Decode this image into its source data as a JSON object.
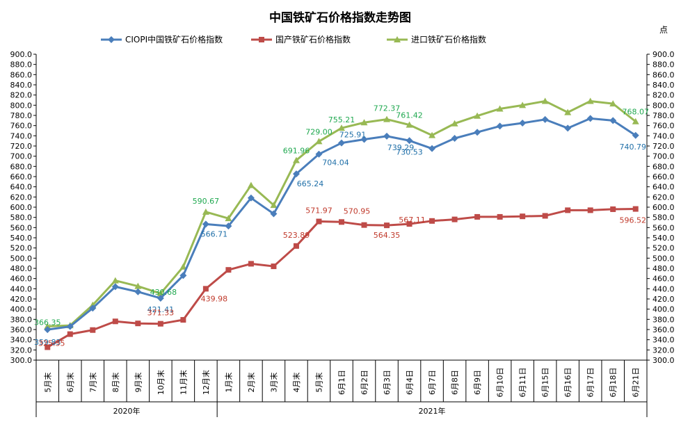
{
  "chart_data": {
    "type": "line",
    "title": "中国铁矿石价格指数走势图",
    "unit_label": "点",
    "ylim": [
      300,
      900
    ],
    "y_ticks": [
      "300.0",
      "320.0",
      "340.0",
      "360.0",
      "380.0",
      "400.0",
      "420.0",
      "440.0",
      "460.0",
      "480.0",
      "500.0",
      "520.0",
      "540.0",
      "560.0",
      "580.0",
      "600.0",
      "620.0",
      "640.0",
      "660.0",
      "680.0",
      "700.0",
      "720.0",
      "740.0",
      "760.0",
      "780.0",
      "800.0",
      "820.0",
      "840.0",
      "860.0",
      "880.0",
      "900.0"
    ],
    "categories": [
      "5月末",
      "6月末",
      "7月末",
      "8月末",
      "9月末",
      "10月末",
      "11月末",
      "12月末",
      "1月末",
      "2月末",
      "3月末",
      "4月末",
      "5月末",
      "6月1日",
      "6月2日",
      "6月3日",
      "6月4日",
      "6月7日",
      "6月8日",
      "6月9日",
      "6月10日",
      "6月11日",
      "6月15日",
      "6月16日",
      "6月17日",
      "6月18日",
      "6月21日"
    ],
    "year_groups": [
      {
        "label": "2020年",
        "count": 8
      },
      {
        "label": "2021年",
        "count": 19
      }
    ],
    "legend_position": "top",
    "series": [
      {
        "name": "CIOPI中国铁矿石价格指数",
        "color": "#4A7EBB",
        "marker": "diamond",
        "label_color": "#1F6FA8",
        "values": [
          359.83,
          366,
          402,
          444,
          434,
          421.41,
          466,
          566.71,
          563,
          618,
          587,
          665.24,
          704.04,
          725.91,
          733,
          739.29,
          730.53,
          715,
          735,
          747,
          759,
          765,
          772,
          755,
          774,
          770,
          740.79
        ],
        "data_labels": [
          {
            "index": 0,
            "text": "359.83"
          },
          {
            "index": 5,
            "text": "421.41"
          },
          {
            "index": 7,
            "text": "566.71"
          },
          {
            "index": 11,
            "text": "665.24"
          },
          {
            "index": 12,
            "text": "704.04"
          },
          {
            "index": 13,
            "text": "725.91"
          },
          {
            "index": 15,
            "text": "739.29"
          },
          {
            "index": 16,
            "text": "730.53"
          },
          {
            "index": 26,
            "text": "740.79"
          }
        ]
      },
      {
        "name": "国产铁矿石价格指数",
        "color": "#BE4B48",
        "marker": "square",
        "label_color": "#C0392B",
        "values": [
          325.35,
          351,
          359,
          376,
          372,
          371.33,
          379,
          439.98,
          477,
          489,
          484,
          523.89,
          571.97,
          570.95,
          565,
          564.35,
          567.11,
          573,
          576,
          581,
          581,
          582,
          583,
          594,
          594,
          596,
          596.52
        ],
        "data_labels": [
          {
            "index": 0,
            "text": "325.35"
          },
          {
            "index": 5,
            "text": "371.33"
          },
          {
            "index": 7,
            "text": "439.98"
          },
          {
            "index": 11,
            "text": "523.89"
          },
          {
            "index": 12,
            "text": "571.97"
          },
          {
            "index": 13,
            "text": "570.95"
          },
          {
            "index": 15,
            "text": "564.35"
          },
          {
            "index": 16,
            "text": "567.11"
          },
          {
            "index": 26,
            "text": "596.52"
          }
        ]
      },
      {
        "name": "进口铁矿石价格指数",
        "color": "#98B954",
        "marker": "triangle",
        "label_color": "#1FA84F",
        "values": [
          366.35,
          368,
          408,
          456,
          445,
          430.68,
          483,
          590.67,
          578,
          643,
          604,
          691.96,
          729,
          755.21,
          766,
          772.37,
          761.42,
          741,
          764,
          779,
          793,
          800,
          808,
          786,
          808,
          803,
          768.07
        ],
        "data_labels": [
          {
            "index": 0,
            "text": "366.35"
          },
          {
            "index": 5,
            "text": "430.68"
          },
          {
            "index": 7,
            "text": "590.67"
          },
          {
            "index": 11,
            "text": "691.96"
          },
          {
            "index": 12,
            "text": "729.00"
          },
          {
            "index": 13,
            "text": "755.21"
          },
          {
            "index": 15,
            "text": "772.37"
          },
          {
            "index": 16,
            "text": "761.42"
          },
          {
            "index": 26,
            "text": "768.07"
          }
        ]
      }
    ]
  }
}
